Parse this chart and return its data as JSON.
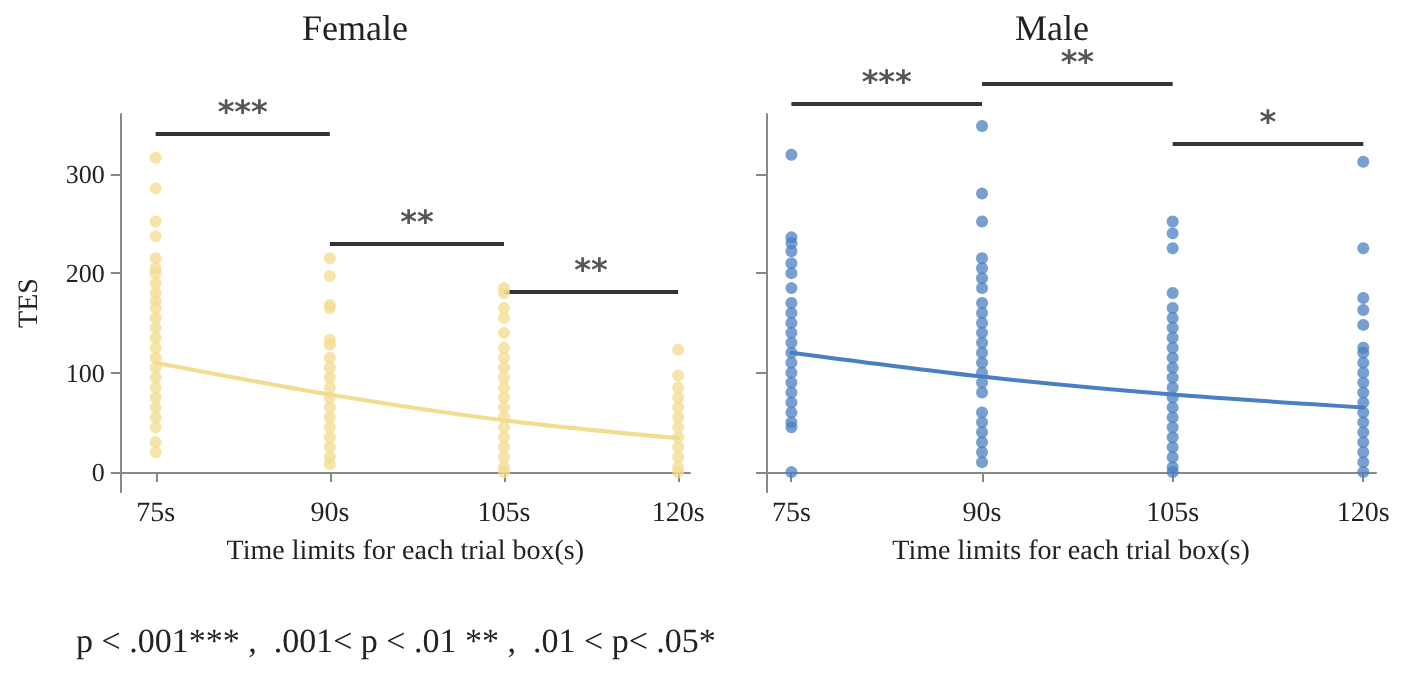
{
  "chart_data": [
    {
      "type": "scatter",
      "title": "Female",
      "xlabel": "Time limits for each trial box(s)",
      "ylabel": "TES",
      "xlim": [
        72,
        121
      ],
      "ylim": [
        -20,
        360
      ],
      "xticks": [
        {
          "value": 75,
          "label": "75s"
        },
        {
          "value": 90,
          "label": "90s"
        },
        {
          "value": 105,
          "label": "105s"
        },
        {
          "value": 120,
          "label": "120s"
        }
      ],
      "yticks": [
        0,
        100,
        200,
        300
      ],
      "grid": false,
      "marker": "circle",
      "series": [
        {
          "color": "#f3dc8f",
          "x": [
            75,
            75,
            75,
            75,
            75,
            75,
            75,
            75,
            75,
            75,
            75,
            75,
            75,
            75,
            75,
            75,
            75,
            75,
            75,
            75,
            75,
            75,
            75,
            75,
            75,
            90,
            90,
            90,
            90,
            90,
            90,
            90,
            90,
            90,
            90,
            90,
            90,
            90,
            90,
            90,
            90,
            90,
            90,
            105,
            105,
            105,
            105,
            105,
            105,
            105,
            105,
            105,
            105,
            105,
            105,
            105,
            105,
            105,
            105,
            105,
            105,
            105,
            120,
            120,
            120,
            120,
            120,
            120,
            120,
            120,
            120,
            120,
            120,
            120
          ],
          "values": [
            316,
            285,
            252,
            237,
            215,
            205,
            200,
            190,
            180,
            172,
            165,
            155,
            145,
            135,
            125,
            115,
            105,
            95,
            85,
            75,
            65,
            55,
            45,
            30,
            20,
            215,
            197,
            168,
            165,
            133,
            128,
            115,
            105,
            95,
            85,
            75,
            65,
            55,
            45,
            35,
            25,
            15,
            8,
            185,
            180,
            165,
            155,
            140,
            125,
            115,
            105,
            95,
            85,
            75,
            65,
            55,
            45,
            35,
            25,
            15,
            5,
            0,
            123,
            97,
            85,
            75,
            65,
            55,
            45,
            35,
            25,
            15,
            5,
            0
          ]
        },
        {
          "type": "line",
          "color": "#f3dc8f",
          "marker": "none",
          "x": [
            75,
            90,
            105,
            120
          ],
          "values": [
            110,
            78,
            52,
            34
          ]
        }
      ],
      "annotations": [
        "***",
        "**",
        "**",
        "p < .001*** ,  .001< p < .01 ** ,  .01 < p< .05*"
      ]
    },
    {
      "type": "scatter",
      "title": "Male",
      "xlabel": "Time limits for each trial box(s)",
      "xlim": [
        73,
        121
      ],
      "ylim": [
        -20,
        360
      ],
      "xticks": [
        {
          "value": 75,
          "label": "75s"
        },
        {
          "value": 90,
          "label": "90s"
        },
        {
          "value": 105,
          "label": "105s"
        },
        {
          "value": 120,
          "label": "120s"
        }
      ],
      "yticks": [
        0,
        100,
        200,
        300
      ],
      "tick_labels": "x",
      "grid": false,
      "marker": "circle",
      "series": [
        {
          "color": "#4a7fc1",
          "x": [
            75,
            75,
            75,
            75,
            75,
            75,
            75,
            75,
            75,
            75,
            75,
            75,
            75,
            75,
            75,
            75,
            75,
            75,
            75,
            75,
            75,
            75,
            90,
            90,
            90,
            90,
            90,
            90,
            90,
            90,
            90,
            90,
            90,
            90,
            90,
            90,
            90,
            90,
            90,
            90,
            90,
            90,
            90,
            90,
            90,
            105,
            105,
            105,
            105,
            105,
            105,
            105,
            105,
            105,
            105,
            105,
            105,
            105,
            105,
            105,
            105,
            105,
            105,
            105,
            105,
            105,
            105,
            120,
            120,
            120,
            120,
            120,
            120,
            120,
            120,
            120,
            120,
            120,
            120,
            120,
            120,
            120,
            120,
            120,
            120,
            120
          ],
          "values": [
            319,
            236,
            230,
            222,
            210,
            200,
            185,
            170,
            160,
            150,
            140,
            130,
            120,
            110,
            100,
            90,
            80,
            70,
            60,
            50,
            45,
            0,
            348,
            280,
            252,
            215,
            205,
            195,
            185,
            170,
            160,
            150,
            140,
            130,
            120,
            110,
            100,
            90,
            80,
            60,
            50,
            40,
            30,
            20,
            10,
            252,
            240,
            225,
            180,
            165,
            155,
            145,
            135,
            125,
            115,
            105,
            95,
            85,
            75,
            65,
            55,
            45,
            35,
            25,
            15,
            5,
            0,
            312,
            225,
            175,
            163,
            148,
            125,
            120,
            110,
            100,
            90,
            80,
            70,
            60,
            50,
            40,
            30,
            20,
            10,
            0
          ]
        },
        {
          "type": "line",
          "color": "#4a7fc1",
          "marker": "none",
          "x": [
            75,
            90,
            105,
            120
          ],
          "values": [
            120,
            96,
            78,
            65
          ]
        }
      ],
      "annotations": [
        "***",
        "**",
        "*"
      ]
    }
  ]
}
